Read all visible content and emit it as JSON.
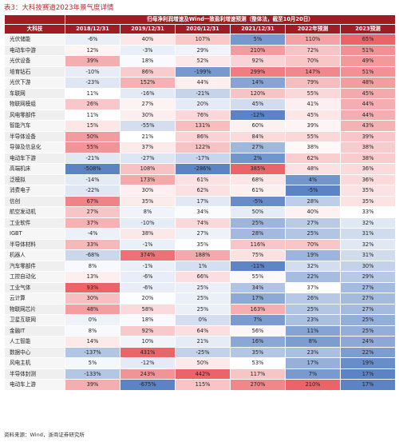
{
  "title": "表3：大科技赛道2023年景气度详情",
  "table": {
    "super_header": "归母净利润增速及Wind一致盈利增速预测（整体法，截至10月20日）",
    "columns": [
      "大科技",
      "2018/12/31",
      "2019/12/31",
      "2020/12/31",
      "2021/12/31",
      "2022年预测",
      "2023预测"
    ],
    "rows": [
      [
        "光伏储能",
        "-6%",
        "40%",
        "107%",
        "5%",
        "110%",
        "65%"
      ],
      [
        "电动车中游",
        "12%",
        "-3%",
        "29%",
        "210%",
        "72%",
        "51%"
      ],
      [
        "光伏设备",
        "39%",
        "18%",
        "52%",
        "92%",
        "70%",
        "49%"
      ],
      [
        "培育钻石",
        "-10%",
        "86%",
        "-199%",
        "299%",
        "147%",
        "51%"
      ],
      [
        "光伏下游",
        "-23%",
        "152%",
        "44%",
        "14%",
        "79%",
        "48%"
      ],
      [
        "车联网",
        "11%",
        "-16%",
        "-21%",
        "120%",
        "55%",
        "45%"
      ],
      [
        "物联网模组",
        "26%",
        "27%",
        "20%",
        "45%",
        "41%",
        "44%"
      ],
      [
        "风电零部件",
        "11%",
        "30%",
        "76%",
        "-12%",
        "45%",
        "44%"
      ],
      [
        "智能汽车",
        "15%",
        "-55%",
        "131%",
        "60%",
        "39%",
        "43%"
      ],
      [
        "半导体设备",
        "50%",
        "21%",
        "86%",
        "84%",
        "55%",
        "39%"
      ],
      [
        "导弹及信息化",
        "55%",
        "37%",
        "122%",
        "27%",
        "38%",
        "38%"
      ],
      [
        "电动车下游",
        "-21%",
        "-27%",
        "-17%",
        "2%",
        "62%",
        "38%"
      ],
      [
        "高端机床",
        "-508%",
        "108%",
        "-286%",
        "385%",
        "48%",
        "36%"
      ],
      [
        "泛模拟",
        "-14%",
        "173%",
        "61%",
        "68%",
        "4%",
        "36%"
      ],
      [
        "消费电子",
        "-22%",
        "30%",
        "62%",
        "61%",
        "-5%",
        "35%"
      ],
      [
        "信创",
        "67%",
        "35%",
        "17%",
        "-5%",
        "28%",
        "35%"
      ],
      [
        "航空发动机",
        "27%",
        "8%",
        "34%",
        "50%",
        "40%",
        "33%"
      ],
      [
        "工业软件",
        "37%",
        "-10%",
        "74%",
        "25%",
        "27%",
        "32%"
      ],
      [
        "IGBT",
        "-4%",
        "38%",
        "27%",
        "28%",
        "25%",
        "31%"
      ],
      [
        "半导体材料",
        "33%",
        "-1%",
        "35%",
        "116%",
        "70%",
        "32%"
      ],
      [
        "机器人",
        "-68%",
        "374%",
        "188%",
        "75%",
        "19%",
        "31%"
      ],
      [
        "汽车零部件",
        "8%",
        "-1%",
        "1%",
        "-11%",
        "32%",
        "30%"
      ],
      [
        "工控自动化",
        "13%",
        "-6%",
        "66%",
        "55%",
        "22%",
        "29%"
      ],
      [
        "工业气体",
        "93%",
        "-6%",
        "25%",
        "34%",
        "37%",
        "27%"
      ],
      [
        "云计算",
        "30%",
        "20%",
        "25%",
        "17%",
        "26%",
        "27%"
      ],
      [
        "物联网芯片",
        "48%",
        "58%",
        "25%",
        "163%",
        "25%",
        "27%"
      ],
      [
        "卫星互联网",
        "0%",
        "18%",
        "0%",
        "7%",
        "23%",
        "25%"
      ],
      [
        "金融IT",
        "8%",
        "92%",
        "64%",
        "56%",
        "11%",
        "25%"
      ],
      [
        "人工智能",
        "14%",
        "10%",
        "21%",
        "16%",
        "8%",
        "24%"
      ],
      [
        "数据中心",
        "-137%",
        "431%",
        "-25%",
        "35%",
        "23%",
        "22%"
      ],
      [
        "风电主机",
        "5%",
        "-12%",
        "50%",
        "53%",
        "17%",
        "19%"
      ],
      [
        "半导体封测",
        "-133%",
        "243%",
        "442%",
        "117%",
        "7%",
        "17%"
      ],
      [
        "电动车上游",
        "39%",
        "-675%",
        "115%",
        "270%",
        "210%",
        "17%"
      ]
    ]
  },
  "source": "资料来源：Wind，浙商证券研究所"
}
